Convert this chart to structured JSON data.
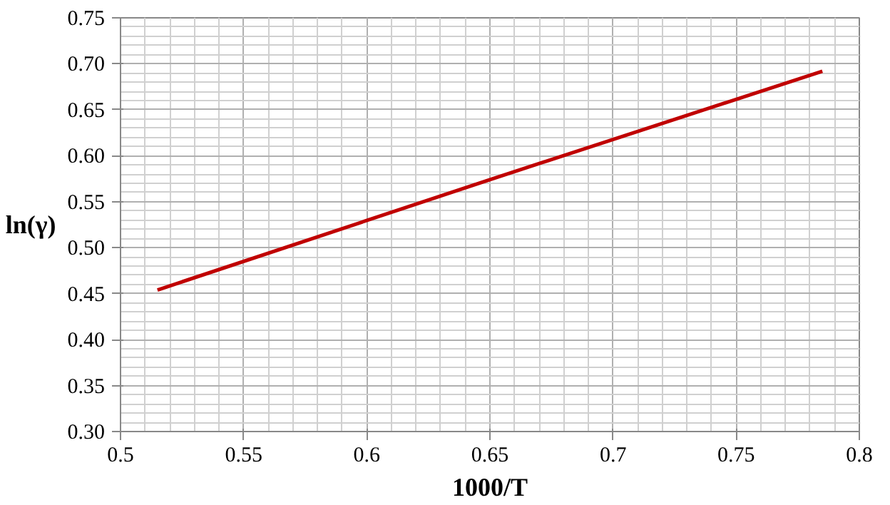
{
  "chart_data": {
    "type": "line",
    "xlabel": "1000/T",
    "ylabel": "ln(γ)",
    "x": [
      0.515,
      0.65,
      0.785
    ],
    "series": [
      {
        "color": "#c00000",
        "values": [
          0.454,
          0.574,
          0.692
        ]
      }
    ],
    "xlim": [
      0.5,
      0.8
    ],
    "xticks": [
      0.5,
      0.55,
      0.6,
      0.65,
      0.7,
      0.75,
      0.8
    ],
    "ylim": [
      0.3,
      0.75
    ],
    "yticks": [
      {
        "value": 0.3,
        "label": "0.30"
      },
      {
        "value": 0.35,
        "label": "0.35"
      },
      {
        "value": 0.4,
        "label": "0.40"
      },
      {
        "value": 0.45,
        "label": "0.45"
      },
      {
        "value": 0.5,
        "label": "0.50"
      },
      {
        "value": 0.55,
        "label": "0.55"
      },
      {
        "value": 0.6,
        "label": "0.60"
      },
      {
        "value": 0.65,
        "label": "0.65"
      },
      {
        "value": 0.7,
        "label": "0.70"
      },
      {
        "value": 0.75,
        "label": "0.75"
      }
    ],
    "grid": true,
    "marker": "none",
    "line_style": "solid"
  }
}
